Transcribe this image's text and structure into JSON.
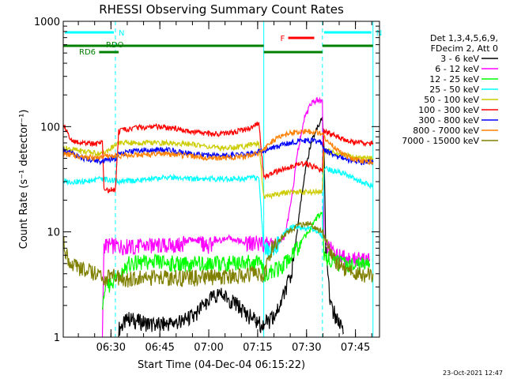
{
  "chart_data": {
    "type": "line",
    "title": "RHESSI Observing Summary Count Rates",
    "xlabel": "Start Time (04-Dec-04 06:15:22)",
    "ylabel": "Count Rate (s⁻¹ detector⁻¹)",
    "y_scale": "log",
    "ylim": [
      1,
      1000
    ],
    "y_ticks": [
      {
        "value": 1,
        "label": "1"
      },
      {
        "value": 10,
        "label": "10"
      },
      {
        "value": 100,
        "label": "100"
      },
      {
        "value": 1000,
        "label": "1000"
      }
    ],
    "x_unit": "minutes after 06:15:22",
    "xlim": [
      0,
      97
    ],
    "x_ticks": [
      {
        "value": 14.63,
        "label": "06:30"
      },
      {
        "value": 29.63,
        "label": "06:45"
      },
      {
        "value": 44.63,
        "label": "07:00"
      },
      {
        "value": 59.63,
        "label": "07:15"
      },
      {
        "value": 74.63,
        "label": "07:30"
      },
      {
        "value": 89.63,
        "label": "07:45"
      }
    ],
    "legend": {
      "placement": "right",
      "header": [
        "Det 1,3,4,5,6,9,",
        "FDecim 2, Att 0"
      ]
    },
    "series": [
      {
        "name": "3 - 6 keV",
        "color": "#000000",
        "points": [
          [
            17,
            1.2
          ],
          [
            20,
            1.5
          ],
          [
            28,
            1.3
          ],
          [
            36,
            1.4
          ],
          [
            40,
            1.6
          ],
          [
            44,
            2.2
          ],
          [
            48,
            2.6
          ],
          [
            52,
            2.2
          ],
          [
            57,
            1.6
          ],
          [
            61,
            1.3
          ],
          [
            64,
            1.5
          ],
          [
            67,
            2.2
          ],
          [
            70,
            4
          ],
          [
            72,
            12
          ],
          [
            74,
            35
          ],
          [
            76,
            70
          ],
          [
            78,
            100
          ],
          [
            79.5,
            120
          ],
          [
            80,
            60
          ],
          [
            80.5,
            7
          ],
          [
            82,
            2
          ],
          [
            86,
            1.1
          ]
        ]
      },
      {
        "name": "6 - 12 keV",
        "color": "#ff00ff",
        "points": [
          [
            12,
            1
          ],
          [
            12.5,
            7.5
          ],
          [
            20,
            7.3
          ],
          [
            28,
            7.4
          ],
          [
            36,
            7.5
          ],
          [
            39,
            8.5
          ],
          [
            42,
            7.8
          ],
          [
            45,
            7.5
          ],
          [
            48,
            8.3
          ],
          [
            51,
            8.8
          ],
          [
            54,
            8.2
          ],
          [
            57,
            7.9
          ],
          [
            60,
            8
          ],
          [
            63,
            7.5
          ],
          [
            66,
            8
          ],
          [
            68,
            9
          ],
          [
            70,
            20
          ],
          [
            72,
            60
          ],
          [
            74,
            120
          ],
          [
            76,
            165
          ],
          [
            78,
            180
          ],
          [
            79.5,
            170
          ],
          [
            80,
            8
          ],
          [
            84,
            6
          ],
          [
            90,
            5.5
          ],
          [
            94,
            5.5
          ]
        ]
      },
      {
        "name": "12 - 25 keV",
        "color": "#00ff00",
        "points": [
          [
            12,
            2.2
          ],
          [
            12.5,
            2.8
          ],
          [
            20,
            5
          ],
          [
            28,
            5.2
          ],
          [
            36,
            5
          ],
          [
            40,
            5
          ],
          [
            45,
            5
          ],
          [
            50,
            5
          ],
          [
            55,
            5.2
          ],
          [
            60,
            5
          ],
          [
            62,
            4
          ],
          [
            66,
            4.5
          ],
          [
            70,
            6
          ],
          [
            73,
            8
          ],
          [
            76,
            11
          ],
          [
            78,
            14
          ],
          [
            79.5,
            15
          ],
          [
            80,
            6
          ],
          [
            85,
            5
          ],
          [
            90,
            5
          ],
          [
            94,
            5
          ]
        ]
      },
      {
        "name": "25 - 50 keV",
        "color": "#00ffff",
        "points": [
          [
            0,
            30
          ],
          [
            6,
            30
          ],
          [
            12,
            32
          ],
          [
            17,
            30
          ],
          [
            24,
            31
          ],
          [
            32,
            33
          ],
          [
            40,
            32
          ],
          [
            48,
            32
          ],
          [
            56,
            32
          ],
          [
            60,
            33
          ],
          [
            61.5,
            7
          ],
          [
            64,
            6.5
          ],
          [
            66,
            8
          ],
          [
            68,
            10
          ],
          [
            70,
            11
          ],
          [
            73,
            11
          ],
          [
            76,
            10.5
          ],
          [
            78,
            10
          ],
          [
            79.5,
            9
          ],
          [
            80,
            40
          ],
          [
            83,
            38
          ],
          [
            86,
            36
          ],
          [
            90,
            31
          ],
          [
            94,
            28
          ],
          [
            95,
            27
          ]
        ]
      },
      {
        "name": "50 - 100 keV",
        "color": "#cccc00",
        "points": [
          [
            0,
            63
          ],
          [
            6,
            58
          ],
          [
            12,
            55
          ],
          [
            17,
            70
          ],
          [
            24,
            70
          ],
          [
            32,
            70
          ],
          [
            40,
            68
          ],
          [
            48,
            62
          ],
          [
            56,
            65
          ],
          [
            60,
            70
          ],
          [
            61.5,
            21
          ],
          [
            66,
            23
          ],
          [
            70,
            24
          ],
          [
            74,
            24
          ],
          [
            79.5,
            24
          ],
          [
            80,
            60
          ],
          [
            84,
            55
          ],
          [
            88,
            52
          ],
          [
            92,
            50
          ],
          [
            95,
            50
          ]
        ]
      },
      {
        "name": "100 - 300 keV",
        "color": "#ff0000",
        "points": [
          [
            0,
            110
          ],
          [
            2,
            75
          ],
          [
            6,
            70
          ],
          [
            10,
            68
          ],
          [
            12,
            70
          ],
          [
            12.5,
            25
          ],
          [
            16,
            25
          ],
          [
            17,
            90
          ],
          [
            22,
            97
          ],
          [
            28,
            100
          ],
          [
            34,
            96
          ],
          [
            40,
            88
          ],
          [
            46,
            85
          ],
          [
            52,
            88
          ],
          [
            58,
            98
          ],
          [
            60,
            110
          ],
          [
            61.5,
            33
          ],
          [
            66,
            38
          ],
          [
            70,
            42
          ],
          [
            74,
            45
          ],
          [
            78,
            40
          ],
          [
            79.5,
            38
          ],
          [
            80,
            90
          ],
          [
            82,
            85
          ],
          [
            85,
            78
          ],
          [
            88,
            72
          ],
          [
            92,
            70
          ],
          [
            95,
            70
          ]
        ]
      },
      {
        "name": "300 - 800 keV",
        "color": "#0000ff",
        "points": [
          [
            0,
            60
          ],
          [
            6,
            50
          ],
          [
            10,
            48
          ],
          [
            12,
            46
          ],
          [
            12.5,
            47
          ],
          [
            16,
            50
          ],
          [
            17,
            55
          ],
          [
            24,
            60
          ],
          [
            32,
            60
          ],
          [
            40,
            55
          ],
          [
            48,
            53
          ],
          [
            56,
            55
          ],
          [
            60,
            58
          ],
          [
            61.5,
            58
          ],
          [
            64,
            62
          ],
          [
            68,
            68
          ],
          [
            72,
            73
          ],
          [
            76,
            74
          ],
          [
            79.5,
            70
          ],
          [
            80,
            60
          ],
          [
            84,
            52
          ],
          [
            88,
            48
          ],
          [
            92,
            46
          ],
          [
            95,
            46
          ]
        ]
      },
      {
        "name": "800 - 7000 keV",
        "color": "#ff8000",
        "points": [
          [
            0,
            55
          ],
          [
            6,
            52
          ],
          [
            10,
            50
          ],
          [
            12,
            52
          ],
          [
            17,
            53
          ],
          [
            24,
            54
          ],
          [
            32,
            55
          ],
          [
            40,
            52
          ],
          [
            48,
            50
          ],
          [
            56,
            52
          ],
          [
            60,
            56
          ],
          [
            61.5,
            60
          ],
          [
            64,
            72
          ],
          [
            68,
            84
          ],
          [
            72,
            90
          ],
          [
            76,
            90
          ],
          [
            79.5,
            85
          ],
          [
            80,
            80
          ],
          [
            84,
            60
          ],
          [
            88,
            50
          ],
          [
            92,
            47
          ],
          [
            95,
            46
          ]
        ]
      },
      {
        "name": "7000 - 15000 keV",
        "color": "#808000",
        "points": [
          [
            0,
            8
          ],
          [
            2,
            5
          ],
          [
            6,
            4.5
          ],
          [
            10,
            4
          ],
          [
            12,
            3.6
          ],
          [
            16,
            3.8
          ],
          [
            20,
            3.6
          ],
          [
            28,
            3.7
          ],
          [
            36,
            3.7
          ],
          [
            44,
            3.7
          ],
          [
            52,
            3.8
          ],
          [
            58,
            4
          ],
          [
            61.5,
            3.9
          ],
          [
            64,
            7
          ],
          [
            68,
            9.5
          ],
          [
            72,
            11.5
          ],
          [
            75,
            12
          ],
          [
            79.5,
            10
          ],
          [
            80,
            9
          ],
          [
            84,
            5
          ],
          [
            90,
            4
          ],
          [
            95,
            4
          ]
        ]
      }
    ],
    "regions": [
      {
        "label": "N",
        "color": "#00ffff",
        "start": 0,
        "end": 16
      },
      {
        "label": "N",
        "color": "#00ffff",
        "start": 79.5,
        "end": 95
      }
    ],
    "bars": [
      {
        "label": "RDO",
        "color": "#008000",
        "start": 0,
        "end": 61.5,
        "level": "upper"
      },
      {
        "label": "RD6",
        "color": "#008000",
        "start": 11,
        "end": 17,
        "level": "lower"
      },
      {
        "label": "",
        "color": "#008000",
        "start": 61.5,
        "end": 79.5,
        "level": "lower"
      },
      {
        "label": "",
        "color": "#008000",
        "start": 79.5,
        "end": 95,
        "level": "upper"
      },
      {
        "label": "F",
        "color": "#ff0000",
        "start": 69,
        "end": 77,
        "level": "top"
      }
    ],
    "attenuator_markers": [
      0,
      16,
      61.5,
      79.5,
      95
    ],
    "footer_date": "23-Oct-2021 12:47"
  }
}
